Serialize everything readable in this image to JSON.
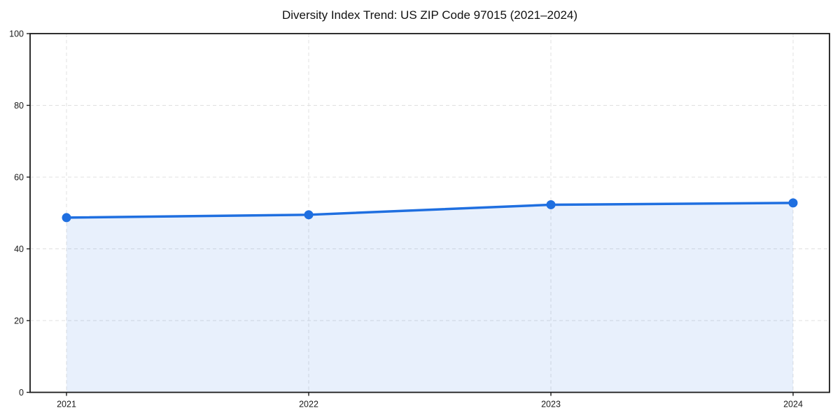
{
  "chart_data": {
    "type": "line",
    "title": "Diversity Index Trend: US ZIP Code 97015 (2021–2024)",
    "categories": [
      "2021",
      "2022",
      "2023",
      "2024"
    ],
    "x": [
      2021,
      2022,
      2023,
      2024
    ],
    "series": [
      {
        "name": "Diversity Index",
        "values": [
          48.7,
          49.5,
          52.3,
          52.8
        ]
      }
    ],
    "xlabel": "",
    "ylabel": "",
    "ylim": [
      0,
      100
    ],
    "yticks": [
      0,
      20,
      40,
      60,
      80,
      100
    ],
    "grid": "dashed",
    "legend": "none",
    "marker": "circle",
    "area_fill": true,
    "colors": {
      "line": "#1f6fe0",
      "marker": "#1f6fe0",
      "area": "rgba(31, 111, 224, 0.10)",
      "grid": "#e0e0e0",
      "axis": "#1a1a1a",
      "text": "#1a1a1a",
      "background": "#ffffff"
    }
  }
}
